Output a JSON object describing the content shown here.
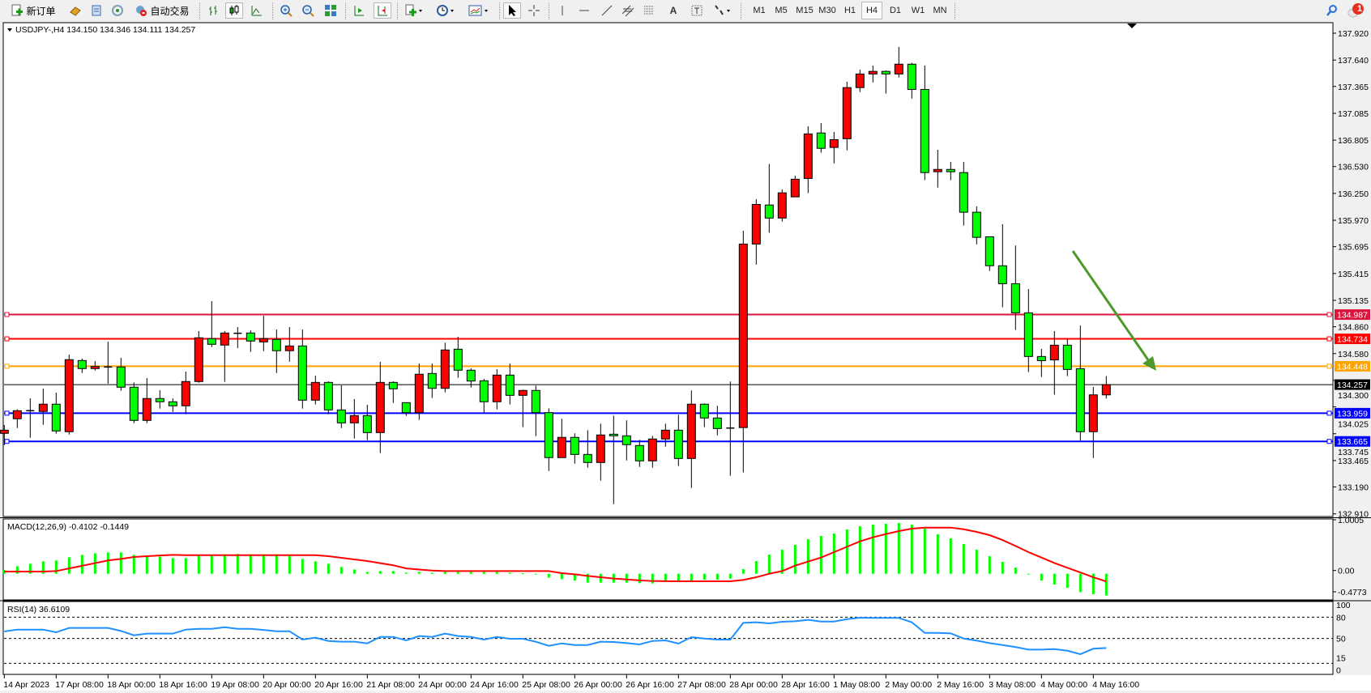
{
  "toolbar": {
    "new_order_label": "新订单",
    "auto_trade_label": "自动交易",
    "timeframes": [
      "M1",
      "M5",
      "M15",
      "M30",
      "H1",
      "H4",
      "D1",
      "W1",
      "MN"
    ],
    "active_timeframe": "H4",
    "notification_count": "1",
    "icons": [
      "new-order-icon",
      "gold-bars-icon",
      "history-center-icon",
      "signal-icon",
      "auto-trading-icon",
      "bar-chart-icon",
      "candlestick-icon",
      "line-chart-icon",
      "zoom-in-icon",
      "zoom-out-icon",
      "tile-windows-icon",
      "auto-scroll-icon",
      "chart-shift-icon",
      "indicators-icon",
      "periods-clock-icon",
      "templates-icon",
      "cursor-icon",
      "crosshair-icon",
      "vertical-line-icon",
      "horizontal-line-icon",
      "trendline-icon",
      "equidistant-channel-icon",
      "fibonacci-icon",
      "text-icon",
      "text-label-icon",
      "arrows-icon",
      "search-icon",
      "notification-icon"
    ]
  },
  "main_chart": {
    "header": "USDJPY-,H4  134.150 134.346 134.111 134.257",
    "price_ticks": [
      "137.920",
      "137.640",
      "137.365",
      "137.085",
      "136.805",
      "136.530",
      "136.250",
      "135.970",
      "135.695",
      "135.415",
      "135.135",
      "134.860",
      "134.580",
      "134.300",
      "134.025",
      "133.745",
      "133.465",
      "133.190",
      "132.910"
    ],
    "horizontal_lines": [
      {
        "price": "134.987",
        "color": "#dc143c"
      },
      {
        "price": "134.734",
        "color": "#ff0000"
      },
      {
        "price": "134.448",
        "color": "#ffa500"
      },
      {
        "price": "133.959",
        "color": "#0000ff"
      },
      {
        "price": "133.665",
        "color": "#0000ff"
      }
    ],
    "bid_line": {
      "price": "134.257",
      "color": "#000000"
    },
    "arrow_color": "#4c9a2a"
  },
  "time_labels": [
    "14 Apr 2023",
    "17 Apr 08:00",
    "18 Apr 00:00",
    "18 Apr 16:00",
    "19 Apr 08:00",
    "20 Apr 00:00",
    "20 Apr 16:00",
    "21 Apr 08:00",
    "24 Apr 00:00",
    "24 Apr 16:00",
    "25 Apr 08:00",
    "26 Apr 00:00",
    "26 Apr 16:00",
    "27 Apr 08:00",
    "28 Apr 00:00",
    "28 Apr 16:00",
    "1 May 08:00",
    "2 May 00:00",
    "2 May 16:00",
    "3 May 08:00",
    "4 May 00:00",
    "4 May 16:00"
  ],
  "macd_pane": {
    "header": "MACD(12,26,9) -0.4102 -0.1449",
    "ticks": [
      "1.0005",
      "0.00",
      "-0.4773"
    ]
  },
  "rsi_pane": {
    "header": "RSI(14) 36.6109",
    "ticks": [
      "100",
      "80",
      "50",
      "15",
      "0"
    ]
  },
  "chart_data": [
    {
      "type": "candlestick",
      "symbol": "USDJPY-",
      "timeframe": "H4",
      "ylim": [
        132.89,
        138.02
      ],
      "bull_color": "#ff0000",
      "bear_color": "#00ff00",
      "ohlc": [
        [
          133.749,
          133.836,
          133.625,
          133.782
        ],
        [
          133.901,
          133.999,
          133.804,
          133.985
        ],
        [
          133.985,
          134.114,
          133.703,
          133.985
        ],
        [
          133.977,
          134.215,
          133.838,
          134.053
        ],
        [
          134.053,
          134.173,
          133.745,
          133.774
        ],
        [
          133.766,
          134.57,
          133.737,
          134.517
        ],
        [
          134.508,
          134.528,
          134.378,
          134.424
        ],
        [
          134.424,
          134.502,
          134.404,
          134.446
        ],
        [
          134.441,
          134.705,
          134.266,
          134.441
        ],
        [
          134.441,
          134.536,
          134.193,
          134.23
        ],
        [
          134.23,
          134.28,
          133.855,
          133.884
        ],
        [
          133.884,
          134.325,
          133.855,
          134.112
        ],
        [
          134.112,
          134.199,
          134.007,
          134.078
        ],
        [
          134.078,
          134.114,
          133.973,
          134.036
        ],
        [
          134.036,
          134.393,
          133.948,
          134.289
        ],
        [
          134.289,
          134.815,
          134.277,
          134.745
        ],
        [
          134.736,
          135.127,
          134.648,
          134.677
        ],
        [
          134.669,
          134.815,
          134.285,
          134.795
        ],
        [
          134.792,
          134.857,
          134.637,
          134.792
        ],
        [
          134.795,
          134.823,
          134.598,
          134.711
        ],
        [
          134.702,
          134.975,
          134.606,
          134.736
        ],
        [
          134.728,
          134.831,
          134.378,
          134.61
        ],
        [
          134.61,
          134.857,
          134.496,
          134.66
        ],
        [
          134.66,
          134.831,
          134.007,
          134.095
        ],
        [
          134.095,
          134.35,
          134.049,
          134.28
        ],
        [
          134.28,
          134.291,
          133.948,
          133.993
        ],
        [
          133.993,
          134.249,
          133.804,
          133.858
        ],
        [
          133.858,
          134.106,
          133.695,
          133.934
        ],
        [
          133.934,
          134.047,
          133.678,
          133.757
        ],
        [
          133.757,
          134.494,
          133.543,
          134.28
        ],
        [
          134.28,
          134.291,
          134.066,
          134.213
        ],
        [
          134.069,
          134.072,
          133.931,
          133.965
        ],
        [
          133.965,
          134.477,
          133.889,
          134.365
        ],
        [
          134.373,
          134.477,
          134.117,
          134.218
        ],
        [
          134.218,
          134.694,
          134.176,
          134.618
        ],
        [
          134.626,
          134.756,
          134.328,
          134.407
        ],
        [
          134.407,
          134.426,
          134.226,
          134.294
        ],
        [
          134.297,
          134.317,
          133.965,
          134.078
        ],
        [
          134.078,
          134.418,
          133.999,
          134.356
        ],
        [
          134.356,
          134.477,
          134.049,
          134.145
        ],
        [
          134.145,
          134.204,
          133.813,
          134.196
        ],
        [
          134.196,
          134.247,
          133.72,
          133.965
        ],
        [
          133.965,
          134.01,
          133.357,
          133.496
        ],
        [
          133.496,
          133.901,
          133.496,
          133.707
        ],
        [
          133.707,
          133.749,
          133.433,
          133.529
        ],
        [
          133.529,
          133.782,
          133.391,
          133.445
        ],
        [
          133.445,
          133.85,
          133.256,
          133.732
        ],
        [
          133.74,
          133.934,
          133.011,
          133.723
        ],
        [
          133.723,
          133.884,
          133.467,
          133.631
        ],
        [
          133.622,
          133.681,
          133.399,
          133.462
        ],
        [
          133.462,
          133.723,
          133.391,
          133.69
        ],
        [
          133.69,
          133.85,
          133.61,
          133.782
        ],
        [
          133.782,
          133.943,
          133.408,
          133.487
        ],
        [
          133.487,
          134.196,
          133.18,
          134.053
        ],
        [
          134.053,
          134.061,
          133.813,
          133.909
        ],
        [
          133.909,
          134.036,
          133.728,
          133.799
        ],
        [
          133.804,
          134.289,
          133.306,
          133.804
        ],
        [
          133.809,
          135.861,
          133.341,
          135.722
        ],
        [
          135.722,
          136.19,
          135.508,
          136.135
        ],
        [
          136.129,
          136.557,
          135.84,
          135.993
        ],
        [
          135.993,
          136.291,
          135.957,
          136.256
        ],
        [
          136.214,
          136.435,
          136.214,
          136.398
        ],
        [
          136.406,
          136.95,
          136.253,
          136.87
        ],
        [
          136.88,
          136.983,
          136.674,
          136.72
        ],
        [
          136.729,
          136.891,
          136.563,
          136.81
        ],
        [
          136.82,
          137.414,
          136.699,
          137.353
        ],
        [
          137.353,
          137.54,
          137.307,
          137.495
        ],
        [
          137.495,
          137.583,
          137.407,
          137.522
        ],
        [
          137.522,
          137.532,
          137.29,
          137.495
        ],
        [
          137.495,
          137.777,
          137.458,
          137.597
        ],
        [
          137.597,
          137.612,
          137.238,
          137.334
        ],
        [
          137.334,
          137.583,
          136.388,
          136.467
        ],
        [
          136.476,
          136.705,
          136.31,
          136.5
        ],
        [
          136.5,
          136.578,
          136.388,
          136.476
        ],
        [
          136.467,
          136.578,
          135.915,
          136.054
        ],
        [
          136.054,
          136.114,
          135.719,
          135.792
        ],
        [
          135.798,
          135.798,
          135.442,
          135.496
        ],
        [
          135.496,
          135.929,
          135.063,
          135.309
        ],
        [
          135.309,
          135.707,
          134.827,
          135.005
        ],
        [
          135.005,
          135.253,
          134.388,
          134.55
        ],
        [
          134.55,
          134.629,
          134.336,
          134.507
        ],
        [
          134.514,
          134.815,
          134.152,
          134.668
        ],
        [
          134.668,
          134.734,
          134.345,
          134.415
        ],
        [
          134.423,
          134.873,
          133.673,
          133.766
        ],
        [
          133.766,
          134.233,
          133.492,
          134.15
        ],
        [
          134.15,
          134.346,
          134.111,
          134.257
        ]
      ]
    },
    {
      "type": "bar",
      "indicator": "MACD(12,26,9)",
      "ylim": [
        -0.4773,
        1.0005
      ],
      "histogram_color": "#00ff00",
      "signal_color": "#ff0000",
      "histogram": [
        0.071,
        0.142,
        0.188,
        0.234,
        0.249,
        0.31,
        0.356,
        0.386,
        0.401,
        0.401,
        0.356,
        0.325,
        0.325,
        0.295,
        0.295,
        0.34,
        0.34,
        0.366,
        0.371,
        0.366,
        0.366,
        0.366,
        0.335,
        0.279,
        0.234,
        0.188,
        0.127,
        0.081,
        0.036,
        0.051,
        0.051,
        0.02,
        0.036,
        0.02,
        0.036,
        0.036,
        0.036,
        0.036,
        0.036,
        0.02,
        0.01,
        -0.015,
        -0.071,
        -0.102,
        -0.127,
        -0.168,
        -0.168,
        -0.168,
        -0.168,
        -0.178,
        -0.183,
        -0.142,
        -0.142,
        -0.142,
        -0.112,
        -0.112,
        -0.091,
        0.086,
        0.239,
        0.361,
        0.452,
        0.544,
        0.65,
        0.711,
        0.757,
        0.833,
        0.894,
        0.925,
        0.94,
        0.955,
        0.925,
        0.849,
        0.742,
        0.666,
        0.559,
        0.452,
        0.33,
        0.224,
        0.117,
        -0.01,
        -0.127,
        -0.203,
        -0.264,
        -0.345,
        -0.385,
        -0.41
      ],
      "signal": [
        0.041,
        0.041,
        0.041,
        0.041,
        0.05,
        0.1,
        0.15,
        0.2,
        0.25,
        0.28,
        0.315,
        0.33,
        0.345,
        0.355,
        0.35,
        0.35,
        0.35,
        0.35,
        0.35,
        0.35,
        0.35,
        0.35,
        0.35,
        0.35,
        0.35,
        0.33,
        0.3,
        0.27,
        0.24,
        0.2,
        0.16,
        0.1,
        0.08,
        0.06,
        0.05,
        0.05,
        0.05,
        0.05,
        0.05,
        0.05,
        0.05,
        0.05,
        0.05,
        0.01,
        -0.01,
        -0.04,
        -0.066,
        -0.09,
        -0.107,
        -0.125,
        -0.137,
        -0.14,
        -0.142,
        -0.142,
        -0.142,
        -0.142,
        -0.142,
        -0.117,
        -0.066,
        0.0,
        0.051,
        0.152,
        0.229,
        0.305,
        0.407,
        0.508,
        0.61,
        0.686,
        0.747,
        0.803,
        0.849,
        0.869,
        0.869,
        0.869,
        0.838,
        0.788,
        0.727,
        0.635,
        0.523,
        0.407,
        0.305,
        0.203,
        0.112,
        0.025,
        -0.066,
        -0.145
      ]
    },
    {
      "type": "line",
      "indicator": "RSI(14)",
      "ylim": [
        0,
        100
      ],
      "levels": [
        80,
        50,
        15
      ],
      "line_color": "#1e90ff",
      "values": [
        59.9,
        62.5,
        62.5,
        62.5,
        58.7,
        64.8,
        64.8,
        64.8,
        64.8,
        60.6,
        54.5,
        56.8,
        56.8,
        56.8,
        62.5,
        63.6,
        63.6,
        65.9,
        63.6,
        63.6,
        62.0,
        60.2,
        60.2,
        48.5,
        51.1,
        46.5,
        45.4,
        45.4,
        43.1,
        52.2,
        52.2,
        47.3,
        53.4,
        52.2,
        56.8,
        53.4,
        52.2,
        48.5,
        52.2,
        49.6,
        49.6,
        45.4,
        39.7,
        43.1,
        40.8,
        40.8,
        45.4,
        45.0,
        43.5,
        41.6,
        46.5,
        47.3,
        42.8,
        51.9,
        49.9,
        48.5,
        48.5,
        72.0,
        72.8,
        71.3,
        73.5,
        74.3,
        76.2,
        73.9,
        73.9,
        77.3,
        79.2,
        79.0,
        79.0,
        79.0,
        72.8,
        57.9,
        57.9,
        57.2,
        49.9,
        47.0,
        43.5,
        40.8,
        37.9,
        34.4,
        34.4,
        35.1,
        32.8,
        27.9,
        35.6,
        36.6109
      ]
    }
  ]
}
